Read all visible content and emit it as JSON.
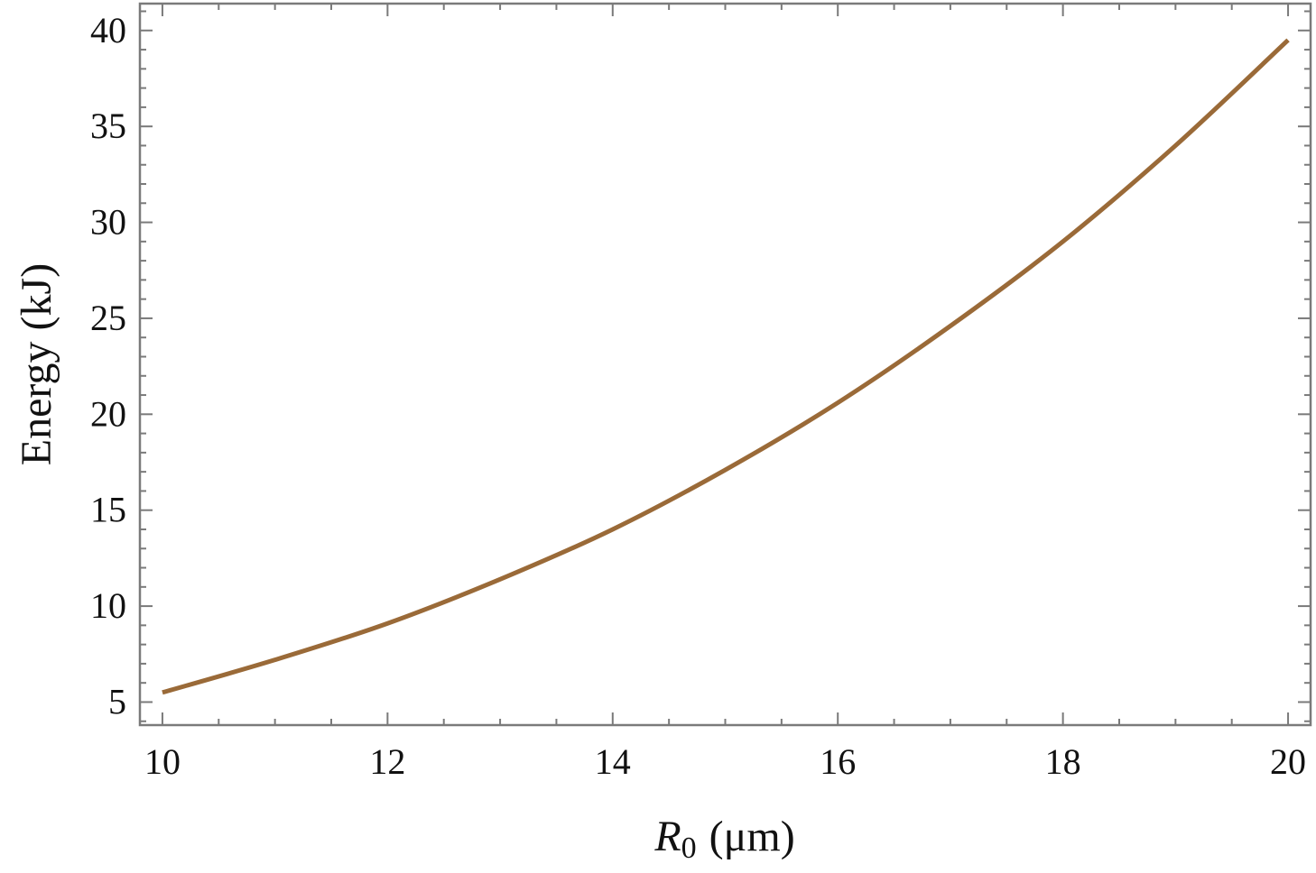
{
  "chart_data": {
    "type": "line",
    "title": "",
    "xlabel": {
      "main": "R",
      "subscript": "0",
      "unit": "(μm)"
    },
    "ylabel": "Energy (kJ)",
    "xlim": [
      9.8,
      20.2
    ],
    "ylim": [
      3.8,
      41.4
    ],
    "xticks": [
      10,
      12,
      14,
      16,
      18,
      20
    ],
    "xtick_labels": [
      "10",
      "12",
      "14",
      "16",
      "18",
      "20"
    ],
    "yticks": [
      5,
      10,
      15,
      20,
      25,
      30,
      35,
      40
    ],
    "ytick_labels": [
      "5",
      "10",
      "15",
      "20",
      "25",
      "30",
      "35",
      "40"
    ],
    "grid": false,
    "legend": "none",
    "series": [
      {
        "color": "#9a6a38",
        "x": [
          10,
          11,
          12,
          13,
          14,
          15,
          16,
          17,
          18,
          19,
          20
        ],
        "y": [
          5.5,
          7.2,
          9.1,
          11.4,
          14.0,
          17.1,
          20.6,
          24.6,
          29.0,
          34.0,
          39.5
        ]
      }
    ]
  }
}
